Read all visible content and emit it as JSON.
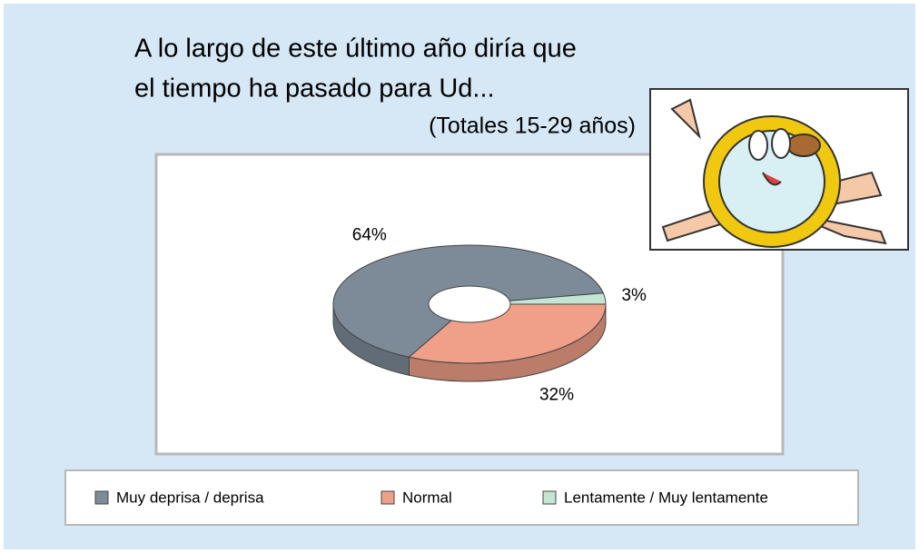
{
  "chart_data": {
    "type": "donut",
    "title": [
      "A lo largo de este último año diría que",
      "el tiempo ha pasado para Ud..."
    ],
    "subtitle": "(Totales 15-29 años)",
    "categories": [
      "Muy deprisa / deprisa",
      "Normal",
      "Lentamente / Muy lentamente"
    ],
    "values": [
      64,
      32,
      3
    ],
    "value_labels": [
      "64%",
      "32%",
      "3%"
    ],
    "colors": [
      "#7d8b98",
      "#f0a088",
      "#c4e4d4"
    ],
    "legend": "bottom"
  }
}
